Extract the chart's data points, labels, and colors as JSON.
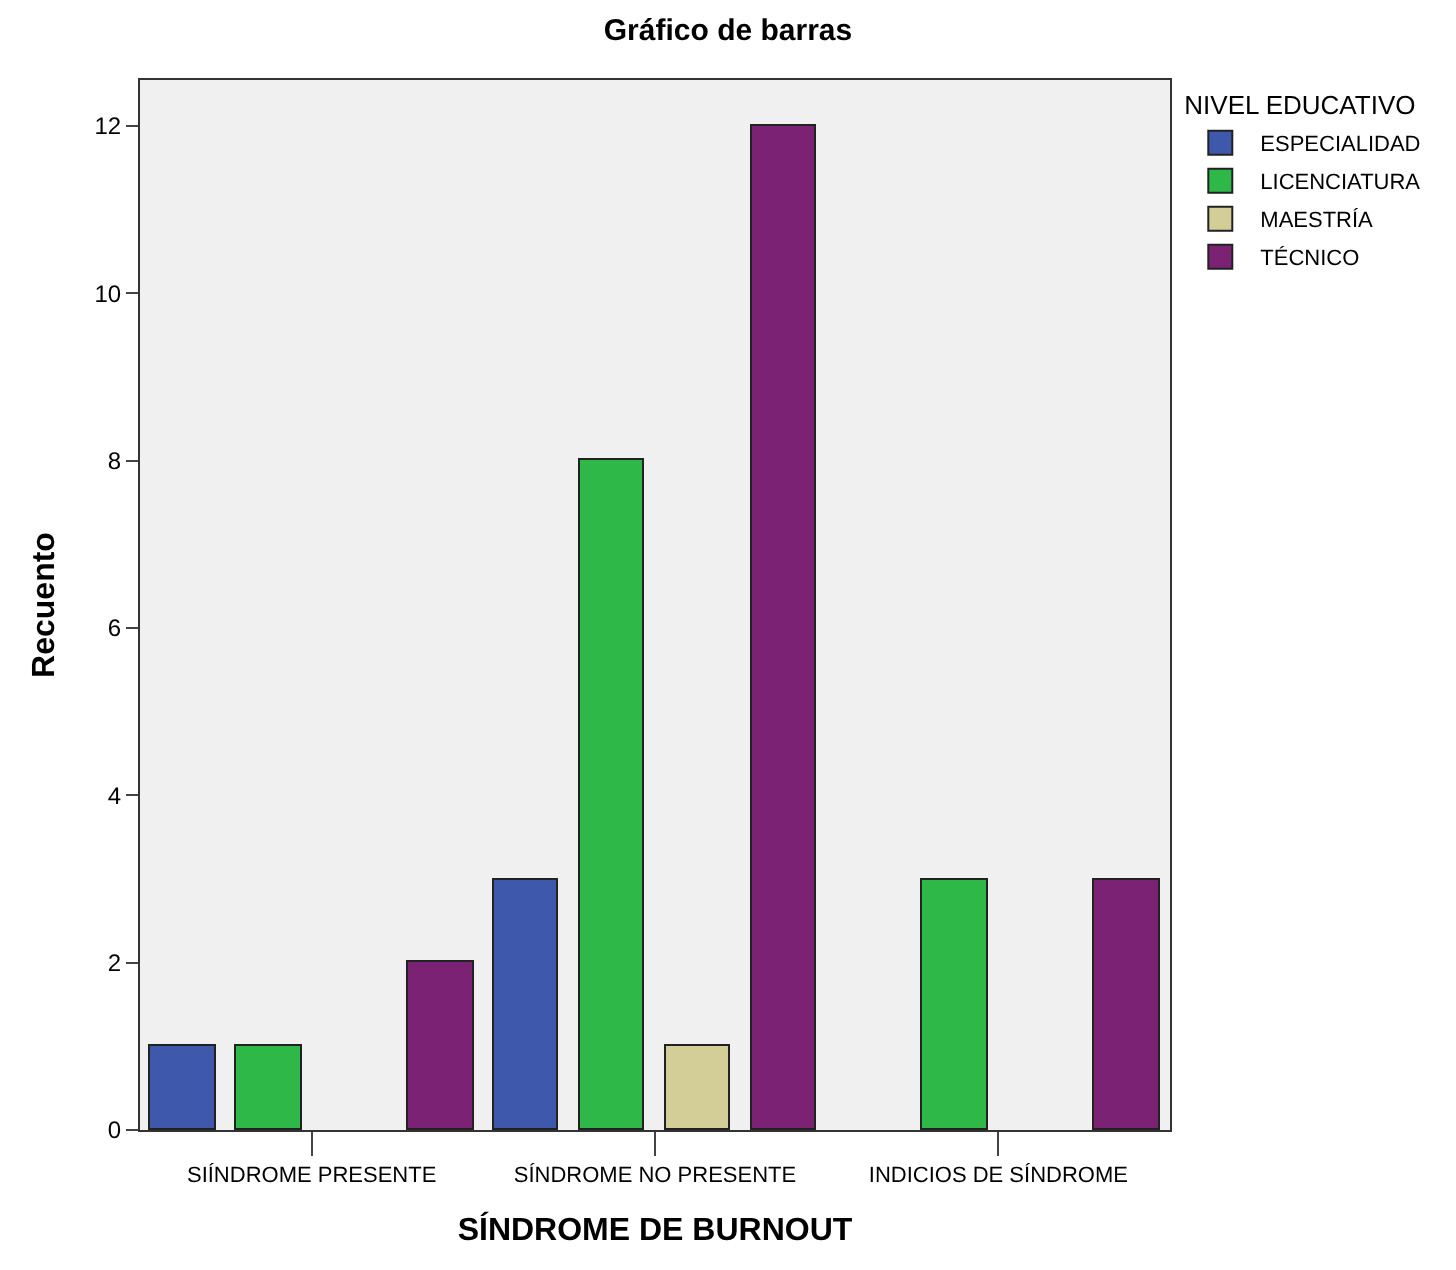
{
  "chart_data": {
    "type": "bar",
    "title": "Gráfico de barras",
    "xlabel": "SÍNDROME DE BURNOUT",
    "ylabel": "Recuento",
    "legend_title": "NIVEL EDUCATIVO",
    "categories": [
      "SIÍNDROME PRESENTE",
      "SÍNDROME NO PRESENTE",
      "INDICIOS DE SÍNDROME"
    ],
    "series": [
      {
        "name": "ESPECIALIDAD",
        "color": "#3e58ac",
        "values": [
          1,
          3,
          null
        ]
      },
      {
        "name": "LICENCIATURA",
        "color": "#2eb848",
        "values": [
          1,
          8,
          3
        ]
      },
      {
        "name": "MAESTRÍA",
        "color": "#d3ce97",
        "values": [
          null,
          1,
          null
        ]
      },
      {
        "name": "TÉCNICO",
        "color": "#7b2275",
        "values": [
          2,
          12,
          3
        ]
      }
    ],
    "ylim": [
      0,
      12.55
    ],
    "yticks": [
      0,
      2,
      4,
      6,
      8,
      10,
      12
    ],
    "grid": false,
    "legend": "top right"
  }
}
